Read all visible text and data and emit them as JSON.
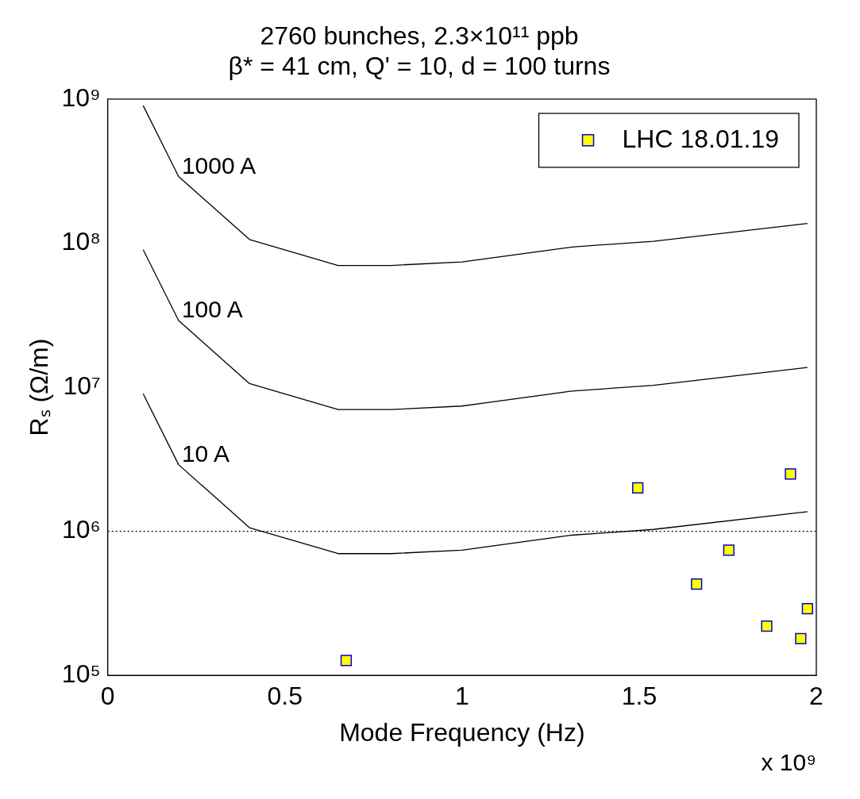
{
  "chart_data": {
    "type": "line",
    "title": "2760 bunches, 2.3×10¹¹ ppb",
    "subtitle": "β* = 41 cm, Q' = 10, d = 100 turns",
    "xlabel": "Mode Frequency (Hz)",
    "ylabel": "Rₛ (Ω/m)",
    "log": "y",
    "xlim": [
      0,
      2
    ],
    "xticks": [
      0,
      0.5,
      1,
      1.5,
      2
    ],
    "ylim": [
      100000,
      1000000000
    ],
    "yticks": [
      {
        "value": 100000,
        "label": "10⁵"
      },
      {
        "value": 1000000,
        "label": "10⁶"
      },
      {
        "value": 10000000,
        "label": "10⁷"
      },
      {
        "value": 100000000,
        "label": "10⁸"
      },
      {
        "value": 1000000000,
        "label": "10⁹"
      }
    ],
    "grid": false,
    "legend": "top right",
    "marker": "none",
    "line_style": "solid",
    "series": [
      {
        "name": "1000 A",
        "color": "#000000",
        "x": [
          0.1,
          0.2,
          0.4,
          0.65,
          0.8,
          1.0,
          1.31,
          1.54,
          1.975
        ],
        "values": [
          900000000,
          290000000,
          106000000,
          70000000,
          70000000,
          74000000,
          94000000,
          103000000,
          137000000
        ]
      },
      {
        "name": "100 A",
        "color": "#000000",
        "x": [
          0.1,
          0.2,
          0.4,
          0.65,
          0.8,
          1.0,
          1.31,
          1.54,
          1.975
        ],
        "values": [
          90000000,
          29000000,
          10600000,
          7000000,
          7000000,
          7400000,
          9400000,
          10300000,
          13700000
        ]
      },
      {
        "name": "10 A",
        "color": "#000000",
        "x": [
          0.1,
          0.2,
          0.4,
          0.65,
          0.8,
          1.0,
          1.31,
          1.54,
          1.975
        ],
        "values": [
          9000000,
          2900000,
          1060000,
          700000,
          700000,
          740000,
          940000,
          1030000,
          1370000
        ]
      },
      {
        "type": "scatter",
        "name": "LHC 18.01.19",
        "color": "#ffff00",
        "marker": "square",
        "x": [
          0.673,
          1.496,
          1.662,
          1.753,
          1.86,
          1.927,
          1.956,
          1.975
        ],
        "values": [
          127000,
          2000000,
          430000,
          740000,
          220000,
          2500000,
          180000,
          290000
        ]
      }
    ],
    "ref_lines": [
      {
        "axis": "y",
        "value": 1000000,
        "line_style": "dotted",
        "color": "#000000"
      }
    ],
    "annotations": [
      "x 10⁹"
    ]
  }
}
